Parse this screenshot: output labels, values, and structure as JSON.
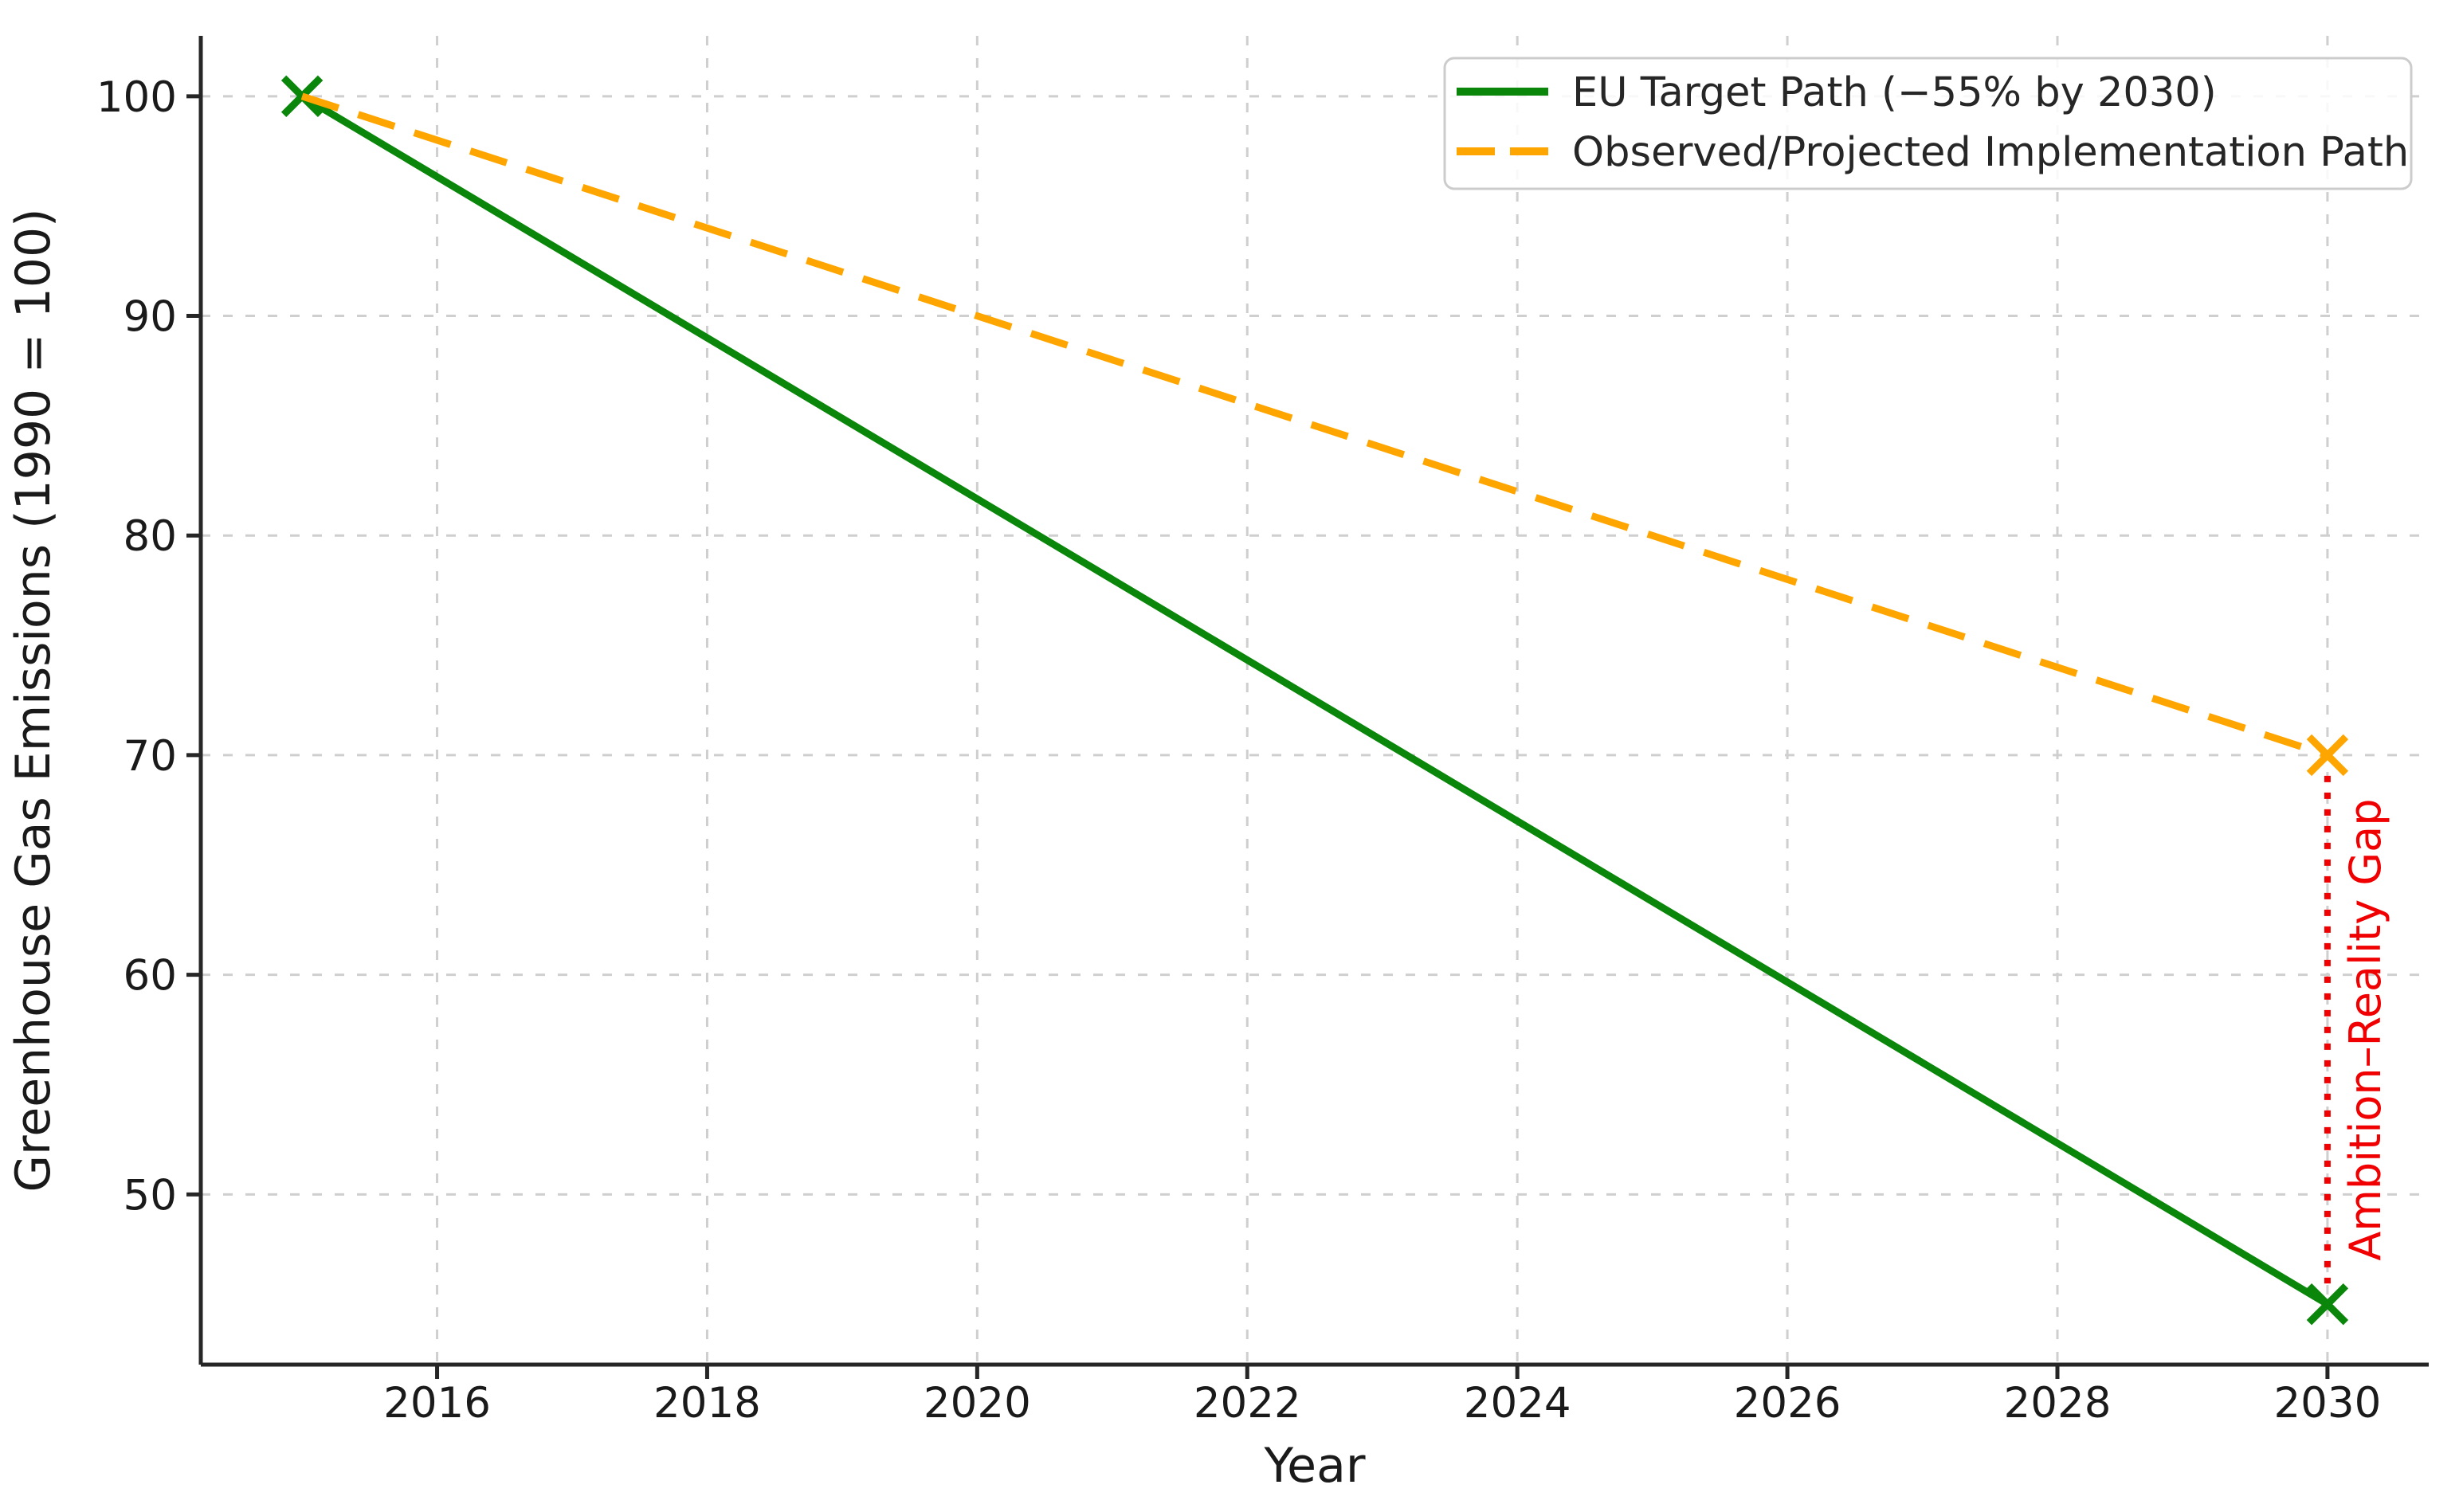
{
  "figure": {
    "background": "#ffffff"
  },
  "chart_data": {
    "type": "line",
    "title": "",
    "xlabel": "Year",
    "ylabel": "Greenhouse Gas Emissions (1990 = 100)",
    "xlim": [
      2014.25,
      2030.75
    ],
    "ylim": [
      42.25,
      102.75
    ],
    "x_ticks": [
      "2016",
      "2018",
      "2020",
      "2022",
      "2024",
      "2026",
      "2028",
      "2030"
    ],
    "x_tick_values": [
      2016,
      2018,
      2020,
      2022,
      2024,
      2026,
      2028,
      2030
    ],
    "y_ticks": [
      "50",
      "60",
      "70",
      "80",
      "90",
      "100"
    ],
    "y_tick_values": [
      50,
      60,
      70,
      80,
      90,
      100
    ],
    "grid": true,
    "grid_color": "#cfcfcf",
    "legend_position": "upper right",
    "series": [
      {
        "name": "EU Target Path (−55% by 2030)",
        "color": "#0a860a",
        "style": "solid",
        "x": [
          2015,
          2030
        ],
        "y": [
          100,
          45
        ],
        "marker": "x",
        "marker_at": [
          0,
          1
        ]
      },
      {
        "name": "Observed/Projected Implementation Path",
        "color": "#ffa500",
        "style": "dashed",
        "x": [
          2015,
          2030
        ],
        "y": [
          100,
          70
        ],
        "marker": "x",
        "marker_at": [
          1
        ]
      }
    ],
    "annotation": {
      "label": "Ambition–Reality Gap",
      "color": "#f00000",
      "x": 2030,
      "y_from": 45,
      "y_to": 70,
      "style": "dotted"
    }
  }
}
